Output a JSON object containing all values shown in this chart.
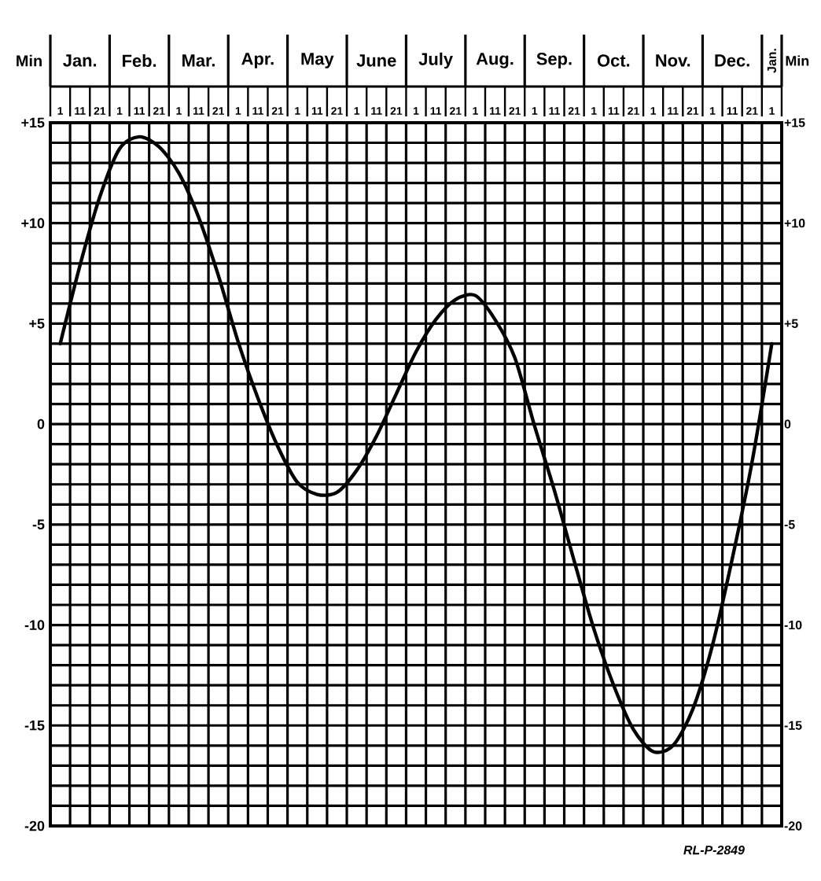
{
  "chart_data": {
    "type": "line",
    "ylabel": "Min",
    "y2label": "Min",
    "categories": [
      "1",
      "11",
      "21",
      "1",
      "11",
      "21",
      "1",
      "11",
      "21",
      "1",
      "11",
      "21",
      "1",
      "11",
      "21",
      "1",
      "11",
      "21",
      "1",
      "11",
      "21",
      "1",
      "11",
      "21",
      "1",
      "11",
      "21",
      "1",
      "11",
      "21",
      "1",
      "11",
      "21",
      "1",
      "11",
      "21",
      "1"
    ],
    "series": [
      {
        "color": "#000000",
        "values": [
          4.0,
          7.9,
          11.3,
          13.7,
          14.3,
          13.8,
          12.5,
          10.3,
          7.4,
          4.1,
          1.3,
          -1.1,
          -2.9,
          -3.5,
          -3.4,
          -2.3,
          -0.6,
          1.5,
          3.6,
          5.2,
          6.2,
          6.4,
          5.2,
          3.3,
          -0.1,
          -3.3,
          -6.8,
          -10.2,
          -13.0,
          -15.2,
          -16.3,
          -16.0,
          -14.2,
          -11.0,
          -6.7,
          -1.9,
          4.0
        ]
      }
    ],
    "ylim": [
      -20,
      15
    ],
    "yticks": [
      {
        "value": 15,
        "label": "+15"
      },
      {
        "value": 10,
        "label": "+10"
      },
      {
        "value": 5,
        "label": "+5"
      },
      0,
      -5,
      -10,
      -15,
      -20
    ],
    "y2lim": [
      -20,
      15
    ],
    "y2ticks": [
      {
        "value": 15,
        "label": "+15"
      },
      {
        "value": 10,
        "label": "+10"
      },
      {
        "value": 5,
        "label": "+5"
      },
      0,
      -5,
      -10,
      -15,
      -20
    ],
    "grid": true,
    "annotations": [
      "Jan.",
      "Feb.",
      "Mar.",
      "Apr.",
      "May",
      "June",
      "July",
      "Aug.",
      "Sep.",
      "Oct.",
      "Nov.",
      "Dec.",
      "Jan.",
      "RL-P-2849"
    ]
  }
}
